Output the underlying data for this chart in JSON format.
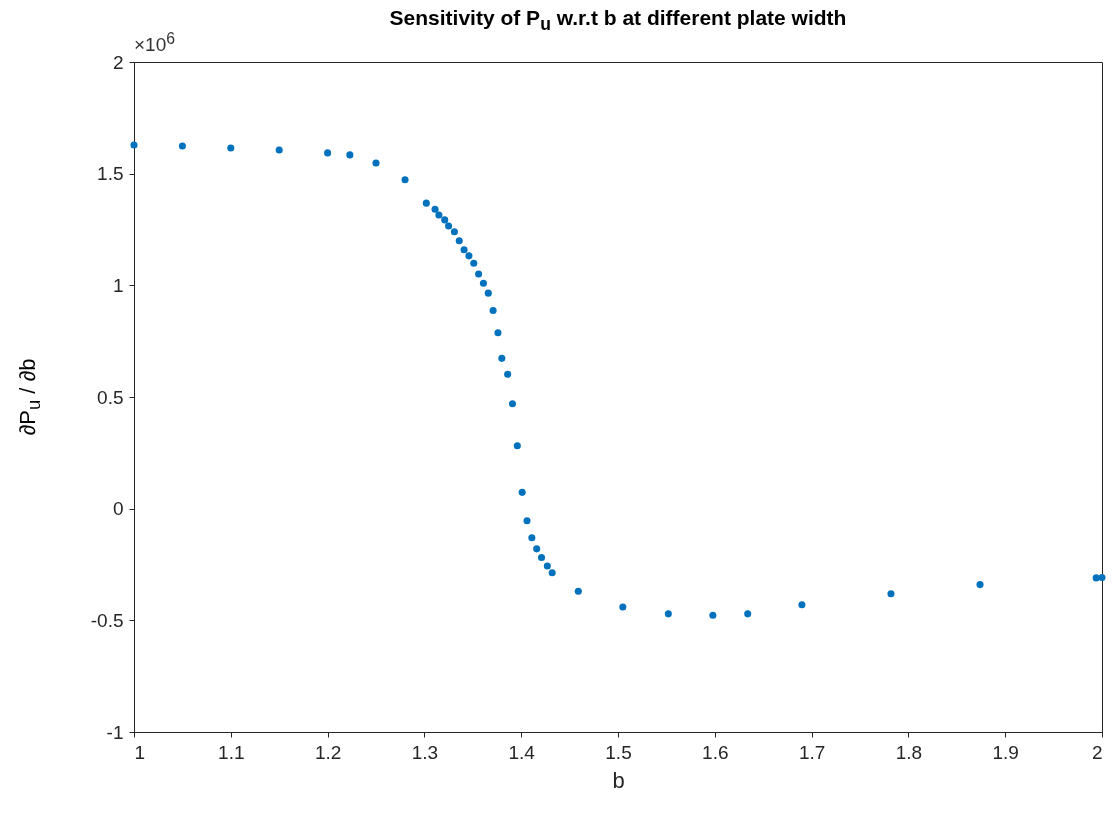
{
  "chart_data": {
    "type": "scatter",
    "title": "Sensitivity of P$_{u}$ w.r.t b at different plate width",
    "xlabel": "b",
    "ylabel": "∂P$_{u}$ / ∂b",
    "annotations": [
      "×10$^{6}$"
    ],
    "x": [
      1.0,
      1.05,
      1.1,
      1.15,
      1.2,
      1.223,
      1.25,
      1.28,
      1.302,
      1.311,
      1.315,
      1.321,
      1.325,
      1.331,
      1.336,
      1.341,
      1.346,
      1.351,
      1.356,
      1.361,
      1.366,
      1.371,
      1.376,
      1.38,
      1.386,
      1.391,
      1.396,
      1.401,
      1.406,
      1.411,
      1.416,
      1.421,
      1.427,
      1.432,
      1.459,
      1.505,
      1.552,
      1.598,
      1.634,
      1.69,
      1.782,
      1.874,
      1.994,
      2.0
    ],
    "series": [
      {
        "color": "#0072bd",
        "values": [
          1.628,
          1.624,
          1.615,
          1.606,
          1.593,
          1.584,
          1.548,
          1.473,
          1.368,
          1.341,
          1.315,
          1.293,
          1.266,
          1.24,
          1.2,
          1.159,
          1.132,
          1.099,
          1.051,
          1.009,
          0.965,
          0.887,
          0.788,
          0.673,
          0.602,
          0.47,
          0.282,
          0.073,
          -0.054,
          -0.13,
          -0.18,
          -0.219,
          -0.257,
          -0.287,
          -0.37,
          -0.44,
          -0.471,
          -0.477,
          -0.471,
          -0.43,
          -0.381,
          -0.34,
          -0.31,
          -0.308
        ]
      }
    ],
    "xlim": [
      1,
      2
    ],
    "xticks": [
      1,
      1.1,
      1.2,
      1.3,
      1.4,
      1.5,
      1.6,
      1.7,
      1.8,
      1.9,
      2
    ],
    "ylim": [
      -1,
      2
    ],
    "yticks": [
      -1,
      -0.5,
      0,
      0.5,
      1,
      1.5,
      2
    ],
    "grid": false,
    "marker": "circle"
  }
}
